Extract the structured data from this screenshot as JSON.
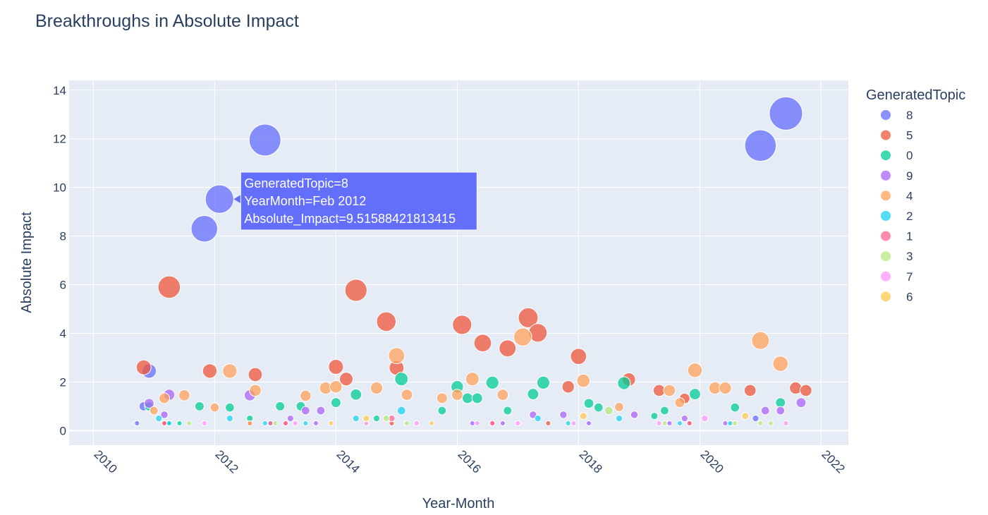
{
  "chart_data": {
    "type": "scatter",
    "title": "Breakthroughs in Absolute Impact",
    "xlabel": "Year-Month",
    "ylabel": "Absolute Impact",
    "xlim": [
      2009.6,
      2022.45
    ],
    "ylim": [
      -0.6,
      14.4
    ],
    "xticks": [
      2010,
      2012,
      2014,
      2016,
      2018,
      2020,
      2022
    ],
    "yticks": [
      0,
      2,
      4,
      6,
      8,
      10,
      12,
      14
    ],
    "grid": true,
    "legend": {
      "title": "GeneratedTopic",
      "placement": "right",
      "entries": [
        "8",
        "5",
        "0",
        "9",
        "4",
        "2",
        "1",
        "3",
        "7",
        "6"
      ]
    },
    "series": [
      {
        "name": "8",
        "color": "#636efa",
        "points": [
          [
            2010.72,
            0.3
          ],
          [
            2010.83,
            1.0
          ],
          [
            2010.92,
            2.45
          ],
          [
            2011.83,
            8.3
          ],
          [
            2012.08,
            9.52
          ],
          [
            2012.83,
            11.95
          ],
          [
            2020.92,
            0.5
          ],
          [
            2021.0,
            11.72
          ],
          [
            2021.42,
            13.04
          ]
        ]
      },
      {
        "name": "5",
        "color": "#ef553b",
        "points": [
          [
            2010.83,
            2.6
          ],
          [
            2011.17,
            0.3
          ],
          [
            2011.25,
            5.9
          ],
          [
            2011.92,
            2.45
          ],
          [
            2012.58,
            0.3
          ],
          [
            2012.67,
            2.3
          ],
          [
            2013.17,
            0.3
          ],
          [
            2014.0,
            2.62
          ],
          [
            2014.17,
            2.12
          ],
          [
            2014.33,
            5.77
          ],
          [
            2014.83,
            4.48
          ],
          [
            2014.92,
            0.3
          ],
          [
            2015.0,
            2.58
          ],
          [
            2016.08,
            4.35
          ],
          [
            2016.42,
            3.6
          ],
          [
            2016.58,
            0.3
          ],
          [
            2016.83,
            3.38
          ],
          [
            2017.17,
            4.64
          ],
          [
            2017.33,
            4.02
          ],
          [
            2017.5,
            0.3
          ],
          [
            2017.83,
            1.8
          ],
          [
            2018.0,
            3.05
          ],
          [
            2018.83,
            2.1
          ],
          [
            2019.33,
            1.65
          ],
          [
            2019.75,
            1.32
          ],
          [
            2019.83,
            0.3
          ],
          [
            2020.83,
            1.65
          ],
          [
            2021.58,
            1.75
          ],
          [
            2021.75,
            1.65
          ]
        ]
      },
      {
        "name": "0",
        "color": "#00cc96",
        "points": [
          [
            2010.92,
            1.0
          ],
          [
            2011.25,
            0.3
          ],
          [
            2011.42,
            0.3
          ],
          [
            2011.75,
            1.0
          ],
          [
            2012.25,
            0.95
          ],
          [
            2012.58,
            0.5
          ],
          [
            2013.08,
            1.0
          ],
          [
            2013.42,
            1.0
          ],
          [
            2014.0,
            1.15
          ],
          [
            2014.33,
            1.48
          ],
          [
            2014.67,
            0.5
          ],
          [
            2015.08,
            2.12
          ],
          [
            2015.75,
            0.82
          ],
          [
            2016.0,
            1.8
          ],
          [
            2016.17,
            1.33
          ],
          [
            2016.33,
            1.33
          ],
          [
            2016.58,
            1.97
          ],
          [
            2016.83,
            0.82
          ],
          [
            2017.25,
            1.5
          ],
          [
            2017.42,
            1.97
          ],
          [
            2018.17,
            1.12
          ],
          [
            2018.33,
            0.95
          ],
          [
            2018.75,
            1.95
          ],
          [
            2019.25,
            0.6
          ],
          [
            2019.42,
            0.82
          ],
          [
            2019.92,
            1.5
          ],
          [
            2020.58,
            0.95
          ],
          [
            2021.33,
            1.15
          ]
        ]
      },
      {
        "name": "9",
        "color": "#ab63fa",
        "points": [
          [
            2010.92,
            1.12
          ],
          [
            2011.17,
            0.65
          ],
          [
            2011.25,
            1.47
          ],
          [
            2012.58,
            1.45
          ],
          [
            2012.92,
            0.3
          ],
          [
            2013.25,
            0.5
          ],
          [
            2013.5,
            0.82
          ],
          [
            2013.67,
            0.3
          ],
          [
            2013.75,
            0.82
          ],
          [
            2016.25,
            0.3
          ],
          [
            2016.75,
            0.3
          ],
          [
            2017.25,
            0.65
          ],
          [
            2017.75,
            0.65
          ],
          [
            2018.17,
            0.3
          ],
          [
            2018.92,
            0.65
          ],
          [
            2019.5,
            0.3
          ],
          [
            2019.75,
            0.5
          ],
          [
            2020.42,
            0.3
          ],
          [
            2021.08,
            0.82
          ],
          [
            2021.33,
            0.82
          ],
          [
            2021.67,
            1.15
          ]
        ]
      },
      {
        "name": "4",
        "color": "#ffa15a",
        "points": [
          [
            2011.0,
            0.82
          ],
          [
            2011.17,
            1.33
          ],
          [
            2011.5,
            1.45
          ],
          [
            2012.0,
            0.95
          ],
          [
            2012.25,
            2.45
          ],
          [
            2012.58,
            0.3
          ],
          [
            2012.67,
            1.65
          ],
          [
            2013.5,
            1.43
          ],
          [
            2013.83,
            1.75
          ],
          [
            2014.0,
            1.8
          ],
          [
            2014.67,
            1.75
          ],
          [
            2015.0,
            3.08
          ],
          [
            2015.17,
            1.47
          ],
          [
            2015.75,
            1.33
          ],
          [
            2016.0,
            1.47
          ],
          [
            2016.25,
            2.12
          ],
          [
            2016.75,
            1.47
          ],
          [
            2017.08,
            3.85
          ],
          [
            2018.08,
            2.05
          ],
          [
            2018.67,
            0.97
          ],
          [
            2019.5,
            1.65
          ],
          [
            2019.67,
            1.15
          ],
          [
            2019.92,
            2.48
          ],
          [
            2020.25,
            1.75
          ],
          [
            2020.42,
            1.75
          ],
          [
            2021.0,
            3.7
          ],
          [
            2021.33,
            2.75
          ]
        ]
      },
      {
        "name": "2",
        "color": "#19d3f3",
        "points": [
          [
            2011.08,
            0.5
          ],
          [
            2011.25,
            0.3
          ],
          [
            2012.25,
            0.5
          ],
          [
            2012.83,
            0.3
          ],
          [
            2013.5,
            0.3
          ],
          [
            2014.33,
            0.5
          ],
          [
            2015.08,
            0.82
          ],
          [
            2017.33,
            0.5
          ],
          [
            2017.83,
            0.3
          ],
          [
            2018.67,
            0.5
          ],
          [
            2019.67,
            0.3
          ],
          [
            2020.5,
            0.3
          ]
        ]
      },
      {
        "name": "1",
        "color": "#ff6692",
        "points": [
          [
            2011.17,
            0.3
          ],
          [
            2012.92,
            0.3
          ],
          [
            2013.17,
            0.3
          ],
          [
            2014.92,
            0.5
          ],
          [
            2016.58,
            0.3
          ],
          [
            2019.83,
            0.3
          ]
        ]
      },
      {
        "name": "3",
        "color": "#b6e880",
        "points": [
          [
            2011.58,
            0.3
          ],
          [
            2013.0,
            0.3
          ],
          [
            2014.5,
            0.3
          ],
          [
            2014.83,
            0.5
          ],
          [
            2015.17,
            0.3
          ],
          [
            2018.5,
            0.82
          ],
          [
            2019.42,
            0.3
          ],
          [
            2020.58,
            0.3
          ],
          [
            2021.0,
            0.3
          ],
          [
            2021.17,
            0.3
          ]
        ]
      },
      {
        "name": "7",
        "color": "#ff97ff",
        "points": [
          [
            2011.83,
            0.3
          ],
          [
            2013.33,
            0.3
          ],
          [
            2014.5,
            0.3
          ],
          [
            2015.33,
            0.3
          ],
          [
            2016.33,
            0.3
          ],
          [
            2017.0,
            0.3
          ],
          [
            2017.92,
            0.3
          ],
          [
            2019.33,
            0.3
          ],
          [
            2020.08,
            0.5
          ],
          [
            2021.42,
            0.3
          ]
        ]
      },
      {
        "name": "6",
        "color": "#fecb52",
        "points": [
          [
            2013.92,
            0.3
          ],
          [
            2014.5,
            0.5
          ],
          [
            2015.58,
            0.3
          ],
          [
            2018.08,
            0.6
          ],
          [
            2020.75,
            0.6
          ]
        ]
      }
    ],
    "marker_size_encodes": "Absolute_Impact"
  },
  "tooltip": {
    "line1": "GeneratedTopic=8",
    "line2": "YearMonth=Feb 2012",
    "line3": "Absolute_Impact=9.51588421813415",
    "color": "#636efa",
    "x": 2012.08,
    "y": 9.52
  }
}
